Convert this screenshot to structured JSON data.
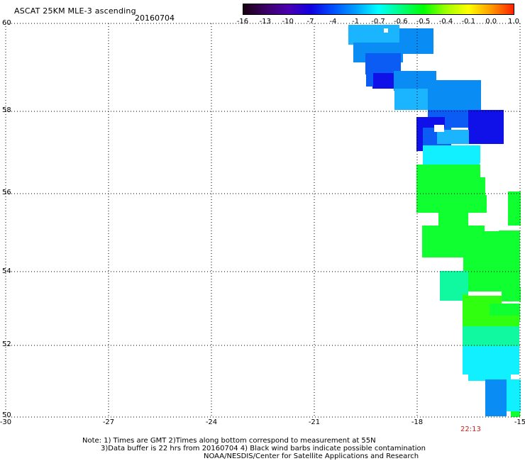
{
  "header": {
    "title": "ASCAT 25KM MLE-3 ascending",
    "date": "20160704"
  },
  "colorbar": {
    "labels": [
      "-16",
      "-13",
      "-10",
      "-7",
      "-4",
      "-1",
      "-0.7",
      "-0.6",
      "-0.5",
      "-0.4",
      "-0.1",
      "0.0",
      "1.0"
    ],
    "colors": [
      "#1a0010",
      "#3b0066",
      "#4a00b0",
      "#1000e0",
      "#0050ff",
      "#00a0ff",
      "#00ffff",
      "#00ff80",
      "#00ff00",
      "#a0ff00",
      "#ffff00",
      "#ff9a00",
      "#ff2000"
    ]
  },
  "axes": {
    "y_labels": [
      "60",
      "58",
      "56",
      "54",
      "52",
      "50"
    ],
    "x_labels": [
      "-30",
      "-27",
      "-24",
      "-21",
      "-18",
      "-15"
    ]
  },
  "time_label": "22:13",
  "notes": {
    "line1": "Note: 1) Times are GMT 2)Times along bottom correspond to measurement at 55N",
    "line2": "3)Data buffer is 22 hrs from 20160704 4) Black wind barbs indicate possible contamination",
    "line3": "NOAA/NESDIS/Center for Satellite Applications and Research"
  },
  "swath_colors": {
    "deep_blue": "#1010e8",
    "blue": "#0a5cf5",
    "light_blue": "#0a8cf5",
    "sky_blue": "#1ab4ff",
    "cyan": "#10f0ff",
    "aqua_green": "#10f8a0",
    "green": "#10ff30",
    "bright_green": "#30ff10"
  }
}
